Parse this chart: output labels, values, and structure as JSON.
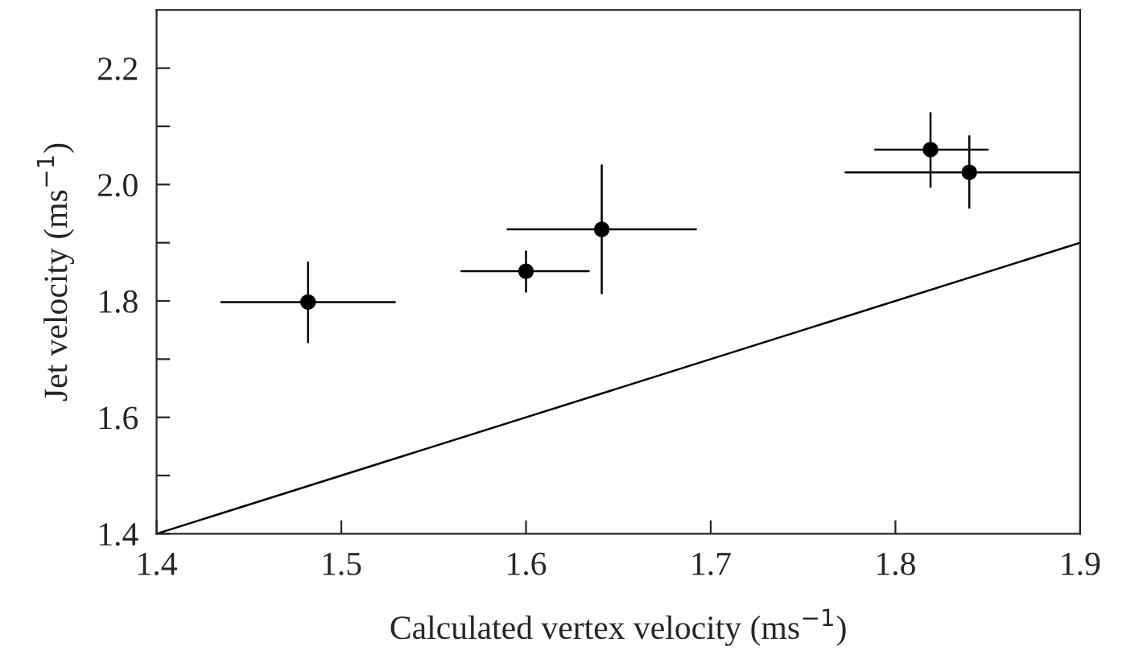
{
  "chart_data": {
    "type": "scatter",
    "xlabel": "Calculated vertex velocity (ms$^{−1}$)",
    "ylabel": "Jet velocity (ms$^{−1}$)",
    "xlim": [
      1.4,
      1.9
    ],
    "ylim": [
      1.4,
      2.3
    ],
    "xticks": [
      1.4,
      1.5,
      1.6,
      1.7,
      1.8,
      1.9
    ],
    "yticks": [
      1.4,
      {
        "value": 1.5,
        "label": null
      },
      1.6,
      {
        "value": 1.7,
        "label": null
      },
      1.8,
      {
        "value": 1.9,
        "label": null
      },
      {
        "value": 2.0,
        "label": "2.0"
      },
      {
        "value": 2.1,
        "label": null
      },
      2.2
    ],
    "grid": false,
    "legend": false,
    "series": [
      {
        "color": "#000000",
        "marker": "circle",
        "x": [
          1.482,
          1.6,
          1.641,
          1.819,
          1.84
        ],
        "values": [
          1.798,
          1.851,
          1.923,
          2.06,
          2.021
        ],
        "errors": [
          [
            1.729,
            1.866
          ],
          [
            1.816,
            1.885
          ],
          [
            1.813,
            2.033
          ],
          [
            1.996,
            2.123
          ],
          [
            1.96,
            2.083
          ]
        ],
        "xerrors": [
          [
            1.435,
            1.529
          ],
          [
            1.565,
            1.634
          ],
          [
            1.59,
            1.692
          ],
          [
            1.789,
            1.85
          ],
          [
            1.773,
            1.9
          ]
        ]
      },
      {
        "type": "line",
        "color": "#000000",
        "marker": "none",
        "line_style": "solid",
        "x": [
          1.4,
          1.9
        ],
        "values": [
          1.4,
          1.9
        ]
      }
    ]
  }
}
